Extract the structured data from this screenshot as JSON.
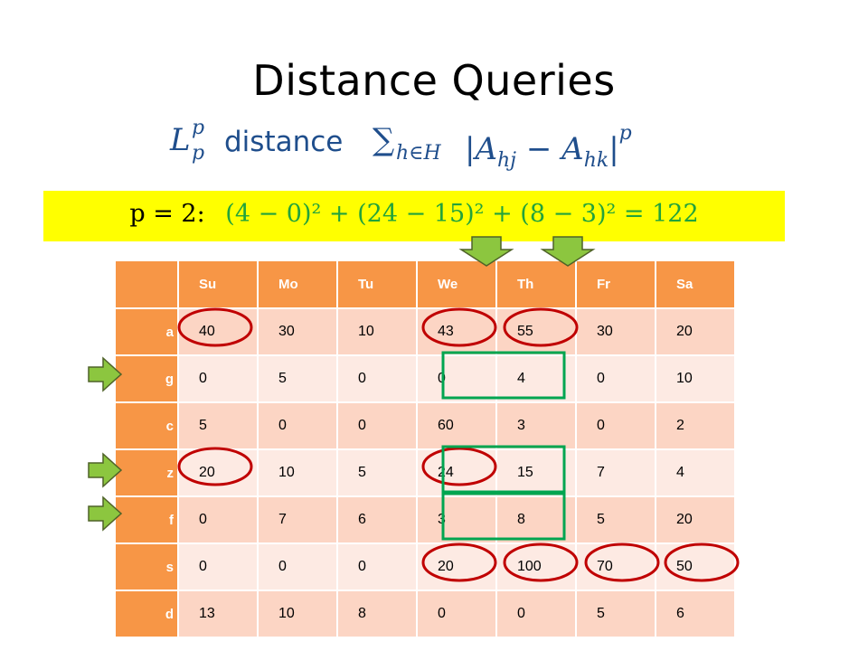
{
  "title": "Distance Queries",
  "formula": {
    "lp_base": "L",
    "lp_sup": "p",
    "lp_sub": "p",
    "word": "distance",
    "sum": "∑",
    "sum_sub": "h∈H",
    "body": "|A",
    "body_sub1": "hj",
    "minus": " − A",
    "body_sub2": "hk",
    "close": "|",
    "power": "p"
  },
  "equation": {
    "prefix": "p = 2:",
    "expression": "(4 − 0)² + (24 − 15)² + (8 − 3)² = 122"
  },
  "table": {
    "columns": [
      "Su",
      "Mo",
      "Tu",
      "We",
      "Th",
      "Fr",
      "Sa"
    ],
    "rows": [
      {
        "label": "a",
        "values": [
          "40",
          "30",
          "10",
          "43",
          "55",
          "30",
          "20"
        ]
      },
      {
        "label": "g",
        "values": [
          "0",
          "5",
          "0",
          "0",
          "4",
          "0",
          "10"
        ]
      },
      {
        "label": "c",
        "values": [
          "5",
          "0",
          "0",
          "60",
          "3",
          "0",
          "2"
        ]
      },
      {
        "label": "z",
        "values": [
          "20",
          "10",
          "5",
          "24",
          "15",
          "7",
          "4"
        ]
      },
      {
        "label": "f",
        "values": [
          "0",
          "7",
          "6",
          "3",
          "8",
          "5",
          "20"
        ]
      },
      {
        "label": "s",
        "values": [
          "0",
          "0",
          "0",
          "20",
          "100",
          "70",
          "50"
        ]
      },
      {
        "label": "d",
        "values": [
          "13",
          "10",
          "8",
          "0",
          "0",
          "5",
          "6"
        ]
      }
    ]
  },
  "colors": {
    "header": "#f79646",
    "row_odd": "#fcd5c4",
    "row_even": "#fdeae3",
    "highlight_band": "#ffff00",
    "equation": "#22a33b",
    "circle": "#c00000",
    "box": "#00a550",
    "arrow": "#8cc63f"
  },
  "markers": {
    "arrow_icon": "green-arrow",
    "circle_icon": "red-ellipse",
    "box_icon": "green-rectangle"
  }
}
